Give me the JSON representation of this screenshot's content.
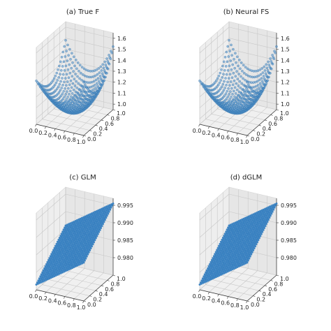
{
  "chart_data": [
    {
      "type": "scatter3d",
      "title": "(a) True F",
      "x_ticks": [
        "0.0",
        "0.2",
        "0.4",
        "0.6",
        "0.8",
        "1.0"
      ],
      "y_ticks": [
        "0.0",
        "0.2",
        "0.4",
        "0.6",
        "0.8",
        "1.0"
      ],
      "z_ticks": [
        "1.0",
        "1.1",
        "1.2",
        "1.3",
        "1.4",
        "1.5",
        "1.6"
      ],
      "xlim": [
        0,
        1
      ],
      "ylim": [
        0,
        1
      ],
      "zlim": [
        0.95,
        1.65
      ],
      "surface": "bowl",
      "z_min": 1.0,
      "z_corner_high": 1.62,
      "z_corner_mid": 1.5,
      "z_corner_low": 1.42,
      "grid": true,
      "marker_color": "#4f8fc9"
    },
    {
      "type": "scatter3d",
      "title": "(b) Neural FS",
      "x_ticks": [
        "0.0",
        "0.2",
        "0.4",
        "0.6",
        "0.8",
        "1.0"
      ],
      "y_ticks": [
        "0.0",
        "0.2",
        "0.4",
        "0.6",
        "0.8",
        "1.0"
      ],
      "z_ticks": [
        "1.0",
        "1.1",
        "1.2",
        "1.3",
        "1.4",
        "1.5",
        "1.6"
      ],
      "xlim": [
        0,
        1
      ],
      "ylim": [
        0,
        1
      ],
      "zlim": [
        0.95,
        1.65
      ],
      "surface": "bowl",
      "z_min": 1.0,
      "z_corner_high": 1.62,
      "z_corner_mid": 1.5,
      "z_corner_low": 1.42,
      "grid": true,
      "marker_color": "#4f8fc9"
    },
    {
      "type": "scatter3d",
      "title": "(c) GLM",
      "x_ticks": [
        "0.0",
        "0.2",
        "0.4",
        "0.6",
        "0.8",
        "1.0"
      ],
      "y_ticks": [
        "0.0",
        "0.2",
        "0.4",
        "0.6",
        "0.8",
        "1.0"
      ],
      "z_ticks": [
        "0.980",
        "0.985",
        "0.990",
        "0.995"
      ],
      "xlim": [
        0,
        1
      ],
      "ylim": [
        0,
        1
      ],
      "zlim": [
        0.975,
        0.997
      ],
      "surface": "plane",
      "z_at_origin": 0.9765,
      "z_at_far_corner": 0.9955,
      "grid": true,
      "marker_color": "#2f7bbf"
    },
    {
      "type": "scatter3d",
      "title": "(d) dGLM",
      "x_ticks": [
        "0.0",
        "0.2",
        "0.4",
        "0.6",
        "0.8",
        "1.0"
      ],
      "y_ticks": [
        "0.0",
        "0.2",
        "0.4",
        "0.6",
        "0.8",
        "1.0"
      ],
      "z_ticks": [
        "0.980",
        "0.985",
        "0.990",
        "0.995"
      ],
      "xlim": [
        0,
        1
      ],
      "ylim": [
        0,
        1
      ],
      "zlim": [
        0.975,
        0.997
      ],
      "surface": "plane",
      "z_at_origin": 0.9765,
      "z_at_far_corner": 0.9955,
      "grid": true,
      "marker_color": "#2f7bbf"
    }
  ]
}
